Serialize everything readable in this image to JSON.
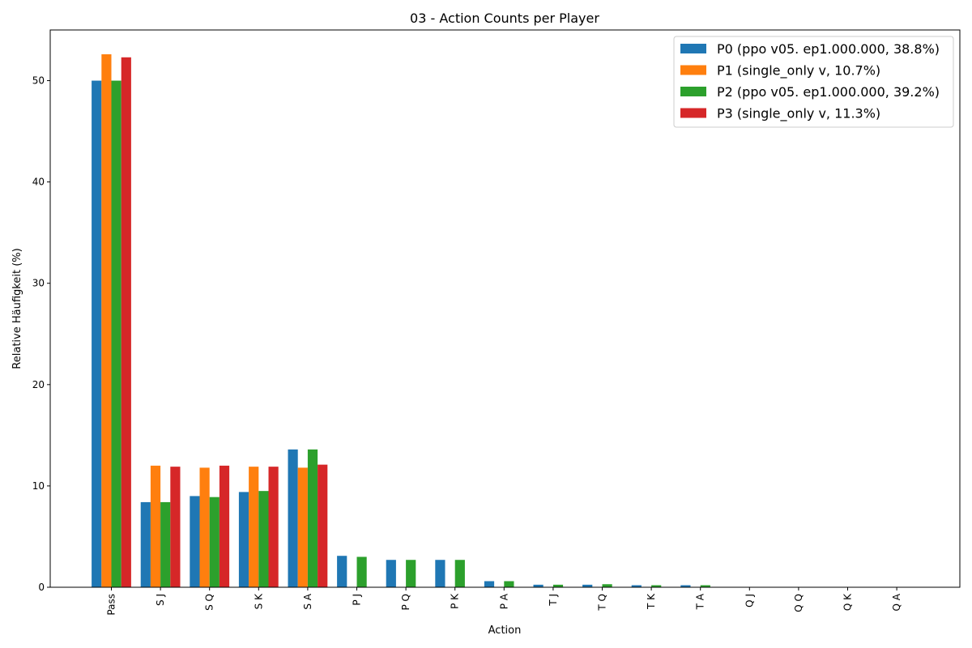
{
  "chart_data": {
    "type": "bar",
    "title": "03 - Action Counts per Player",
    "xlabel": "Action",
    "ylabel": "Relative Häufigkeit (%)",
    "ylim": [
      0,
      55
    ],
    "yticks": [
      0,
      10,
      20,
      30,
      40,
      50
    ],
    "grid": false,
    "legend_position": "top-right",
    "categories": [
      "Pass",
      "S J",
      "S Q",
      "S K",
      "S A",
      "P J",
      "P Q",
      "P K",
      "P A",
      "T J",
      "T Q",
      "T K",
      "T A",
      "Q J",
      "Q Q",
      "Q K",
      "Q A"
    ],
    "series": [
      {
        "name": "P0 (ppo v05. ep1.000.000, 38.8%)",
        "color": "#1f77b4",
        "values": [
          50.0,
          8.4,
          9.0,
          9.4,
          13.6,
          3.1,
          2.7,
          2.7,
          0.6,
          0.25,
          0.25,
          0.2,
          0.2,
          0.0,
          0.0,
          0.0,
          0.0
        ]
      },
      {
        "name": "P1 (single_only v, 10.7%)",
        "color": "#ff7f0e",
        "values": [
          52.6,
          12.0,
          11.8,
          11.9,
          11.8,
          0.0,
          0.0,
          0.0,
          0.0,
          0.0,
          0.0,
          0.0,
          0.0,
          0.0,
          0.0,
          0.0,
          0.0
        ]
      },
      {
        "name": "P2 (ppo v05. ep1.000.000, 39.2%)",
        "color": "#2ca02c",
        "values": [
          50.0,
          8.4,
          8.9,
          9.5,
          13.6,
          3.0,
          2.7,
          2.7,
          0.6,
          0.25,
          0.3,
          0.2,
          0.2,
          0.0,
          0.0,
          0.0,
          0.0
        ]
      },
      {
        "name": "P3 (single_only v, 11.3%)",
        "color": "#d62728",
        "values": [
          52.3,
          11.9,
          12.0,
          11.9,
          12.1,
          0.0,
          0.0,
          0.0,
          0.0,
          0.0,
          0.0,
          0.0,
          0.0,
          0.0,
          0.0,
          0.0,
          0.0
        ]
      }
    ]
  }
}
